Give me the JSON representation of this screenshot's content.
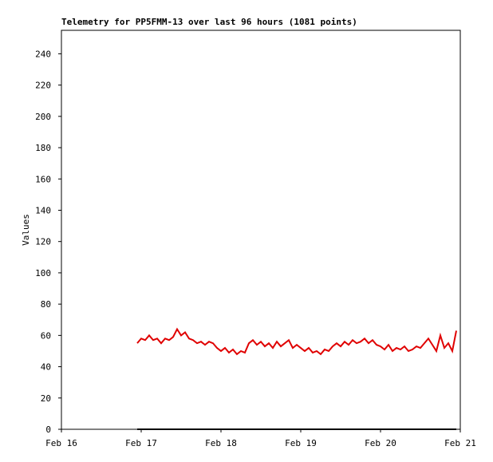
{
  "chart_data": {
    "type": "line",
    "title": "Telemetry for PP5FMM-13 over last 96 hours (1081 points)",
    "y_label": "Values",
    "xlim": [
      16,
      21
    ],
    "xticks": [
      {
        "value": 16,
        "label": "Feb 16"
      },
      {
        "value": 17,
        "label": "Feb 17"
      },
      {
        "value": 18,
        "label": "Feb 18"
      },
      {
        "value": 19,
        "label": "Feb 19"
      },
      {
        "value": 20,
        "label": "Feb 20"
      },
      {
        "value": 21,
        "label": "Feb 21"
      }
    ],
    "ylim": [
      0,
      255
    ],
    "yticks": [
      0,
      20,
      40,
      60,
      80,
      100,
      120,
      140,
      160,
      180,
      200,
      220,
      240
    ],
    "grid": false,
    "series": [
      {
        "color": "#e00000",
        "x": [
          16.95,
          17.0,
          17.05,
          17.1,
          17.15,
          17.2,
          17.25,
          17.3,
          17.35,
          17.4,
          17.45,
          17.5,
          17.55,
          17.6,
          17.65,
          17.7,
          17.75,
          17.8,
          17.85,
          17.9,
          17.95,
          18.0,
          18.05,
          18.1,
          18.15,
          18.2,
          18.25,
          18.3,
          18.35,
          18.4,
          18.45,
          18.5,
          18.55,
          18.6,
          18.65,
          18.7,
          18.75,
          18.8,
          18.85,
          18.9,
          18.95,
          19.0,
          19.05,
          19.1,
          19.15,
          19.2,
          19.25,
          19.3,
          19.35,
          19.4,
          19.45,
          19.5,
          19.55,
          19.6,
          19.65,
          19.7,
          19.75,
          19.8,
          19.85,
          19.9,
          19.95,
          20.0,
          20.05,
          20.1,
          20.15,
          20.2,
          20.25,
          20.3,
          20.35,
          20.4,
          20.45,
          20.5,
          20.55,
          20.6,
          20.65,
          20.7,
          20.75,
          20.8,
          20.85,
          20.9,
          20.95
        ],
        "values": [
          55,
          58,
          57,
          60,
          57,
          58,
          55,
          58,
          57,
          59,
          64,
          60,
          62,
          58,
          57,
          55,
          56,
          54,
          56,
          55,
          52,
          50,
          52,
          49,
          51,
          48,
          50,
          49,
          55,
          57,
          54,
          56,
          53,
          55,
          52,
          56,
          53,
          55,
          57,
          52,
          54,
          52,
          50,
          52,
          49,
          50,
          48,
          51,
          50,
          53,
          55,
          53,
          56,
          54,
          57,
          55,
          56,
          58,
          55,
          57,
          54,
          53,
          51,
          54,
          50,
          52,
          51,
          53,
          50,
          51,
          53,
          52,
          55,
          58,
          54,
          50,
          60,
          52,
          55,
          50,
          63
        ]
      },
      {
        "color": "#000000",
        "x": [
          16.95,
          20.95
        ],
        "values": [
          0,
          0
        ]
      }
    ]
  }
}
